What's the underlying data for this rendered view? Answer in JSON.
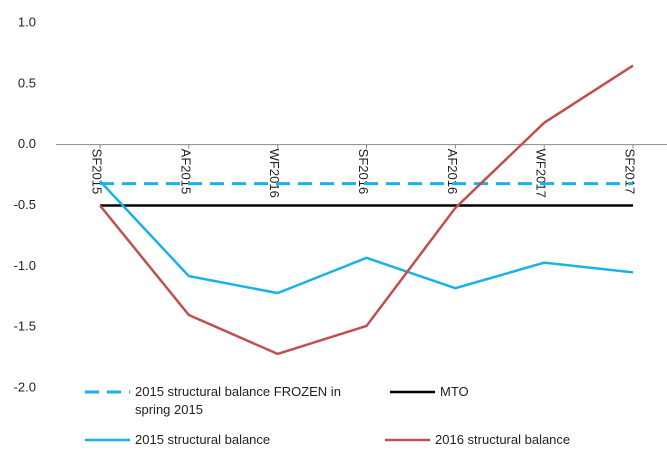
{
  "chart_data": {
    "type": "line",
    "categories": [
      "SF2015",
      "AF2015",
      "WF2016",
      "SF2016",
      "AF2016",
      "WF2017",
      "SF2017"
    ],
    "series": [
      {
        "name": "2015 structural balance FROZEN in spring 2015",
        "color": "#1ab0e8",
        "dash": true,
        "values": [
          -0.32,
          -0.32,
          -0.32,
          -0.32,
          -0.32,
          -0.32,
          -0.32
        ]
      },
      {
        "name": "MTO",
        "color": "#000000",
        "dash": false,
        "values": [
          -0.5,
          -0.5,
          -0.5,
          -0.5,
          -0.5,
          -0.5,
          -0.5
        ]
      },
      {
        "name": "2015 structural balance",
        "color": "#1ab0e8",
        "dash": false,
        "values": [
          -0.3,
          -1.08,
          -1.22,
          -0.93,
          -1.18,
          -0.97,
          -1.05
        ]
      },
      {
        "name": "2016 structural balance",
        "color": "#c0504d",
        "dash": false,
        "values": [
          -0.5,
          -1.4,
          -1.72,
          -1.49,
          -0.52,
          0.18,
          0.65
        ]
      }
    ],
    "ylim": [
      -2,
      1
    ],
    "yticks": [
      {
        "value": 1,
        "label": "1.0"
      },
      0.5,
      {
        "value": 0,
        "label": "0.0"
      },
      -0.5,
      {
        "value": -1,
        "label": "-1.0"
      },
      -1.5,
      {
        "value": -2,
        "label": "-2.0"
      }
    ],
    "legend": "bottom"
  }
}
